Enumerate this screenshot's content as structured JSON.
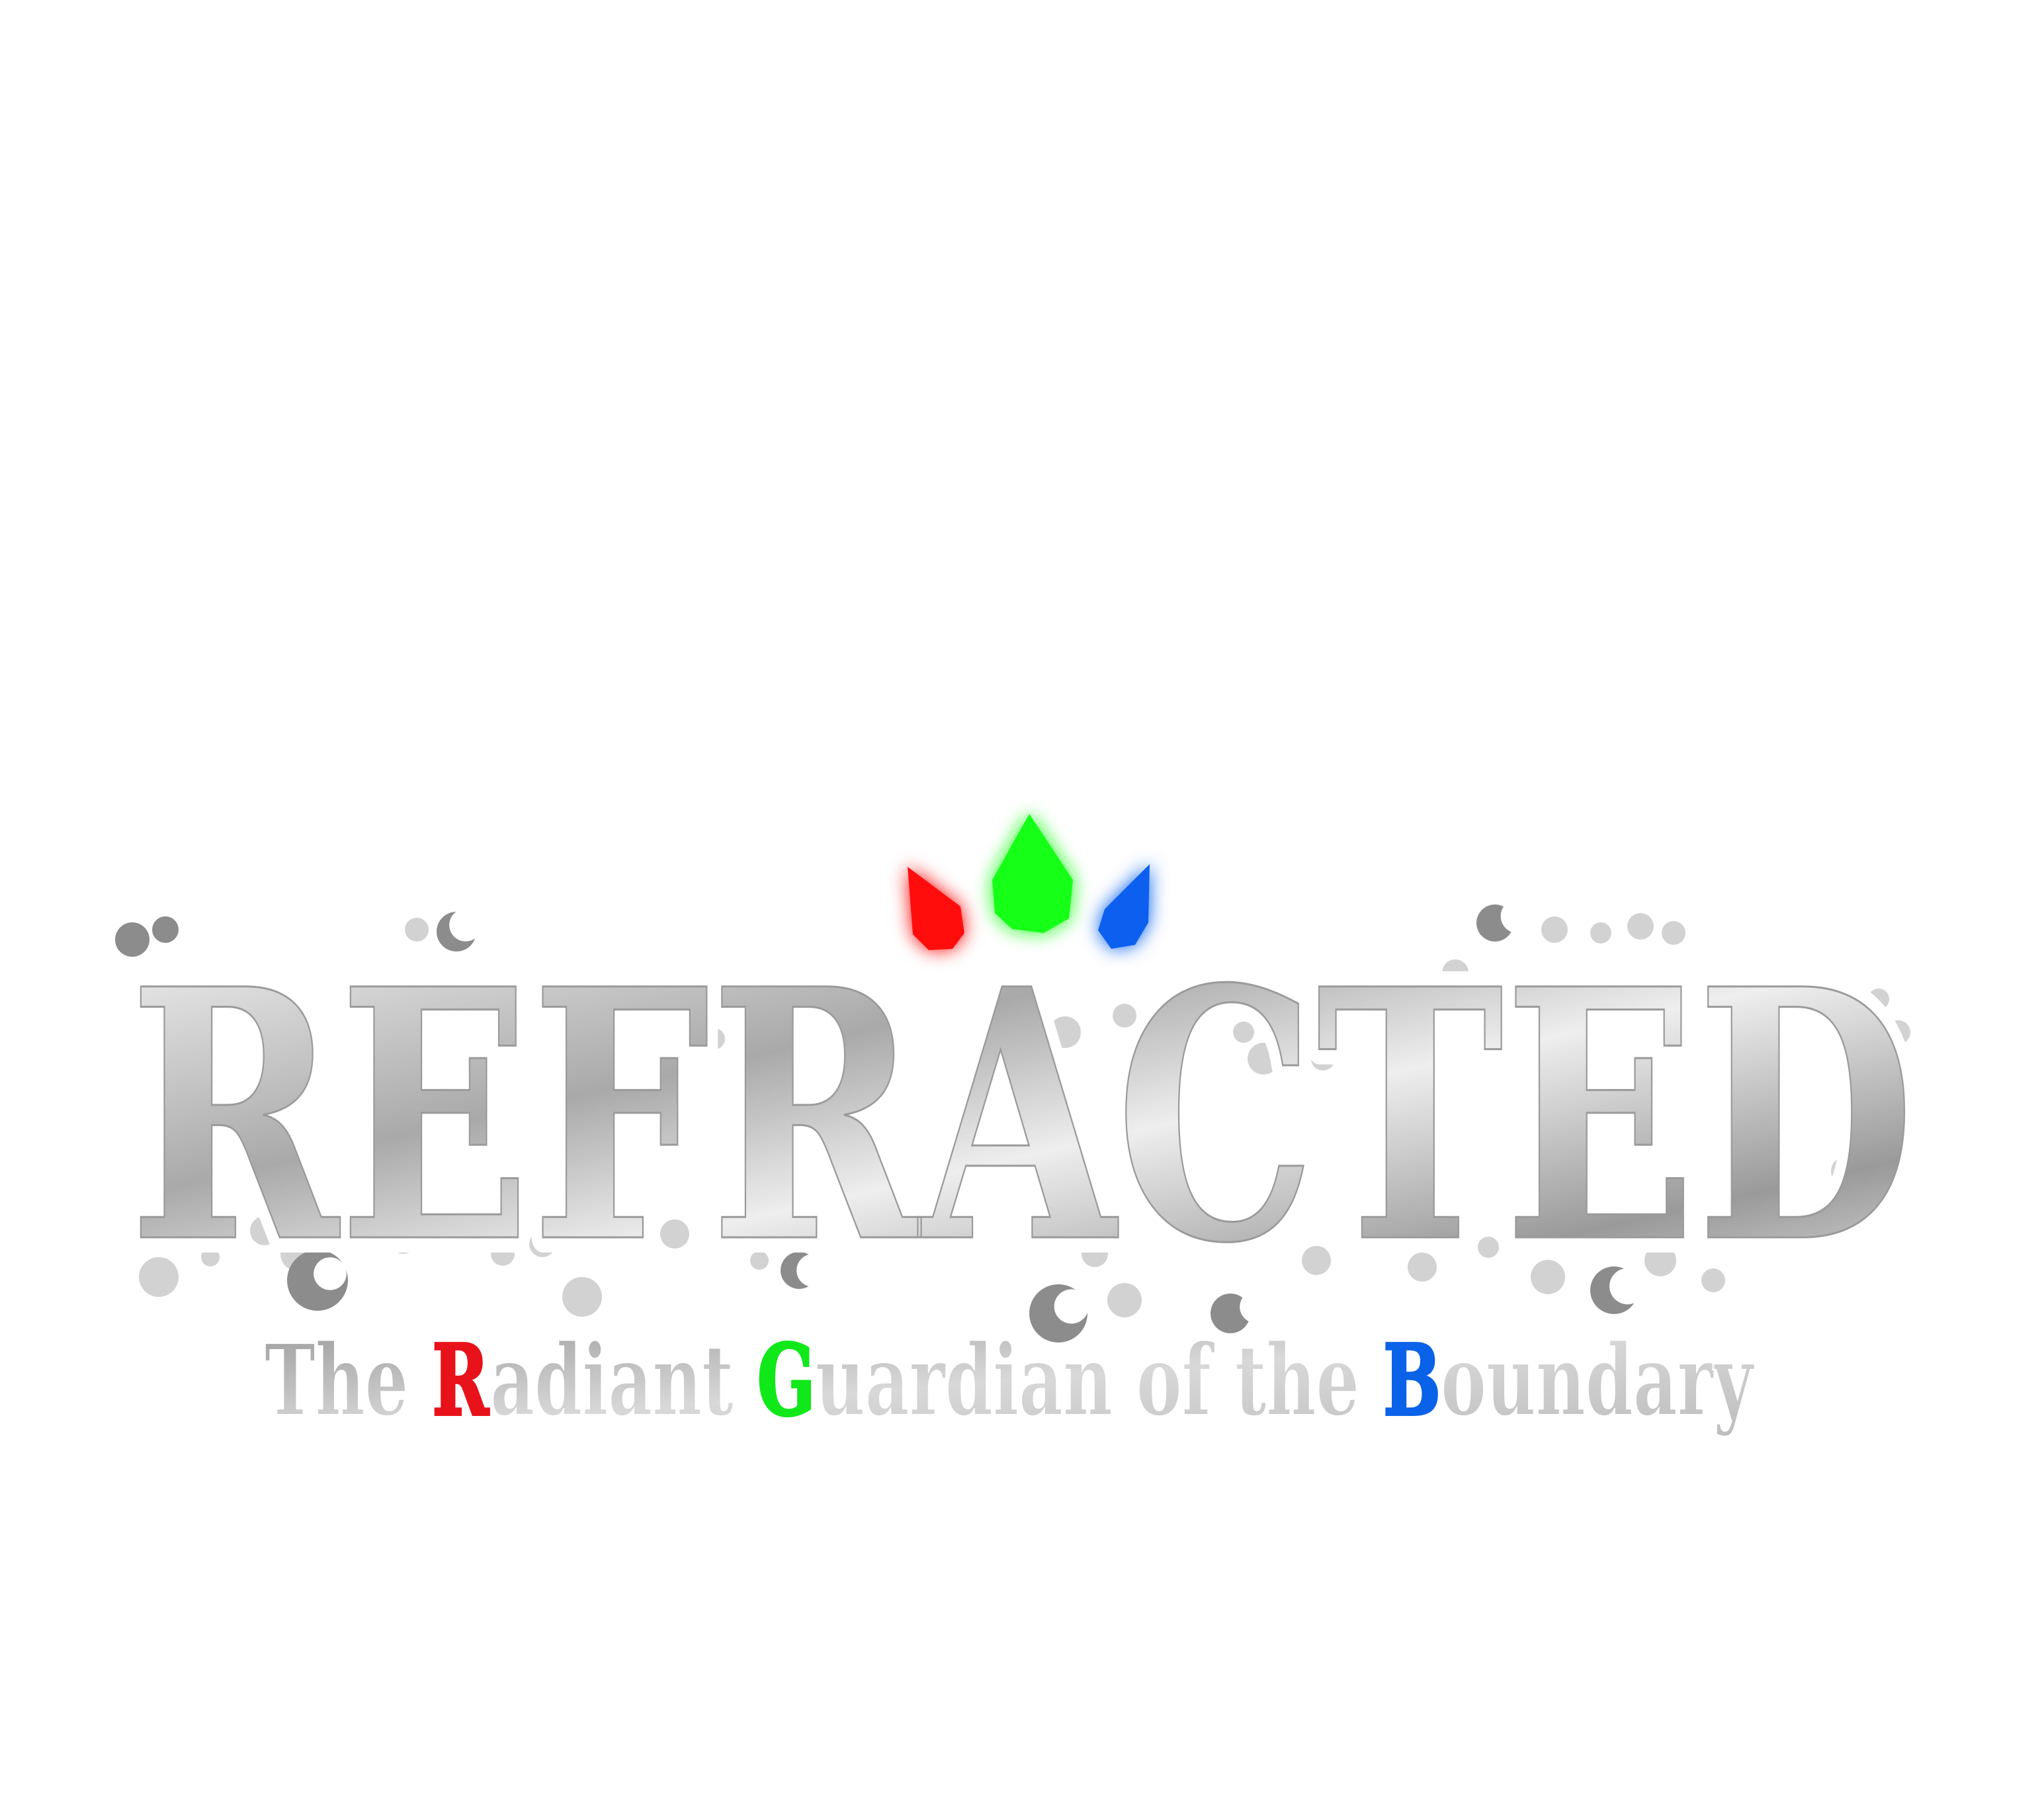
{
  "logo": {
    "title": "REFRACTED",
    "title_letters": [
      "R",
      "E",
      "F",
      "R",
      "A",
      "C",
      "T",
      "E",
      "D"
    ],
    "subtitle_parts": [
      {
        "text": "The ",
        "accent": false
      },
      {
        "text": "R",
        "accent": true,
        "color": "#e8121a"
      },
      {
        "text": "adiant ",
        "accent": false
      },
      {
        "text": "G",
        "accent": true,
        "color": "#10e81a"
      },
      {
        "text": "uardian of the ",
        "accent": false
      },
      {
        "text": "B",
        "accent": true,
        "color": "#0a62e8"
      },
      {
        "text": "oundary",
        "accent": false
      }
    ],
    "gems": [
      {
        "name": "red-gem",
        "color": "#ff1010"
      },
      {
        "name": "green-gem",
        "color": "#18ff18"
      },
      {
        "name": "blue-gem",
        "color": "#0a5ff0"
      }
    ],
    "colors": {
      "background": "#ffffff",
      "metal_light": "#f4f4f4",
      "metal_dark": "#8f8f8f",
      "bubble_dark": "#8c8c8c",
      "bubble_light": "#d2d2d2"
    }
  }
}
